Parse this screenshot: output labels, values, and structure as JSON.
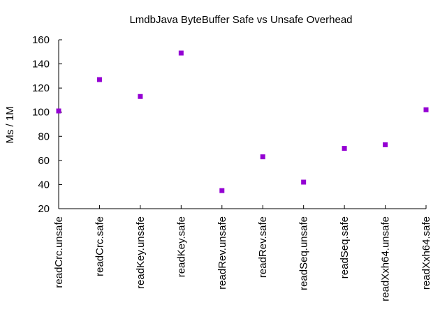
{
  "chart_data": {
    "type": "scatter",
    "title": "LmdbJava ByteBuffer Safe vs Unsafe Overhead",
    "xlabel": "",
    "ylabel": "Ms / 1M",
    "categories": [
      "readCrc.unsafe",
      "readCrc.safe",
      "readKey.unsafe",
      "readKey.safe",
      "readRev.unsafe",
      "readRev.safe",
      "readSeq.unsafe",
      "readSeq.safe",
      "readXxh64.unsafe",
      "readXxh64.safe"
    ],
    "values": [
      101,
      127,
      113,
      149,
      35,
      63,
      42,
      70,
      73,
      102
    ],
    "ylim": [
      20,
      160
    ],
    "yticks": [
      20,
      40,
      60,
      80,
      100,
      120,
      140,
      160
    ],
    "grid": false,
    "marker_color": "#9400d3"
  }
}
